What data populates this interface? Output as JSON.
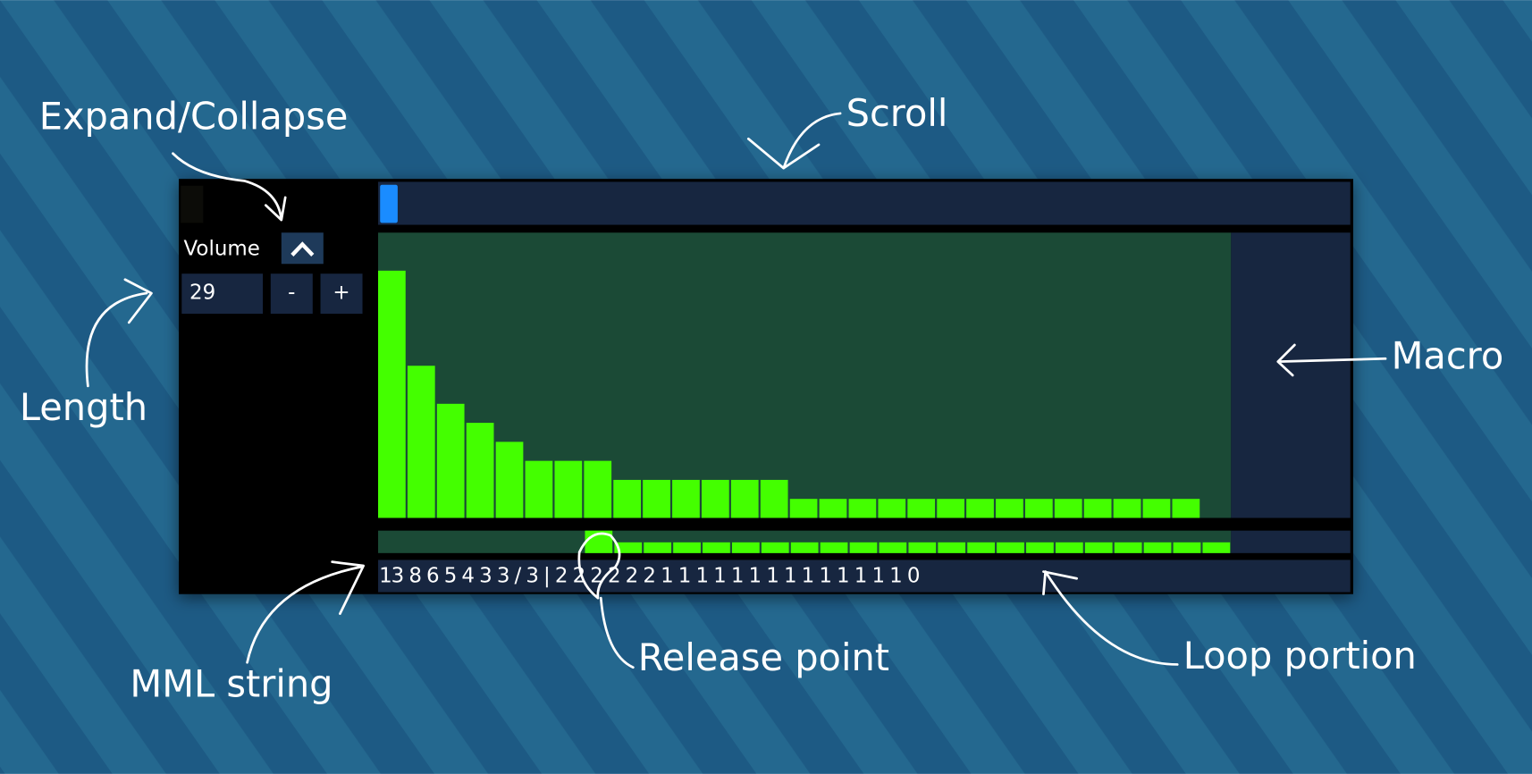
{
  "annotations": {
    "expand_collapse": "Expand/Collapse",
    "scroll": "Scroll",
    "macro": "Macro",
    "length": "Length",
    "mml_string": "MML string",
    "release_point": "Release point",
    "loop_portion": "Loop portion"
  },
  "panel": {
    "label": "Volume",
    "length": "29",
    "minus": "-",
    "plus": "+",
    "mml": "13 8 6 5 4 3 3 / 3 | 2 2 2 2 2 2 1 1 1 1 1 1 1 1 1 1 1 1 1 1 0",
    "macro": {
      "type": "bar",
      "values": [
        13,
        8,
        6,
        5,
        4,
        3,
        3,
        3,
        2,
        2,
        2,
        2,
        2,
        2,
        1,
        1,
        1,
        1,
        1,
        1,
        1,
        1,
        1,
        1,
        1,
        1,
        1,
        1,
        0
      ],
      "color": "#44ff00",
      "ylim": [
        0,
        15
      ]
    }
  }
}
